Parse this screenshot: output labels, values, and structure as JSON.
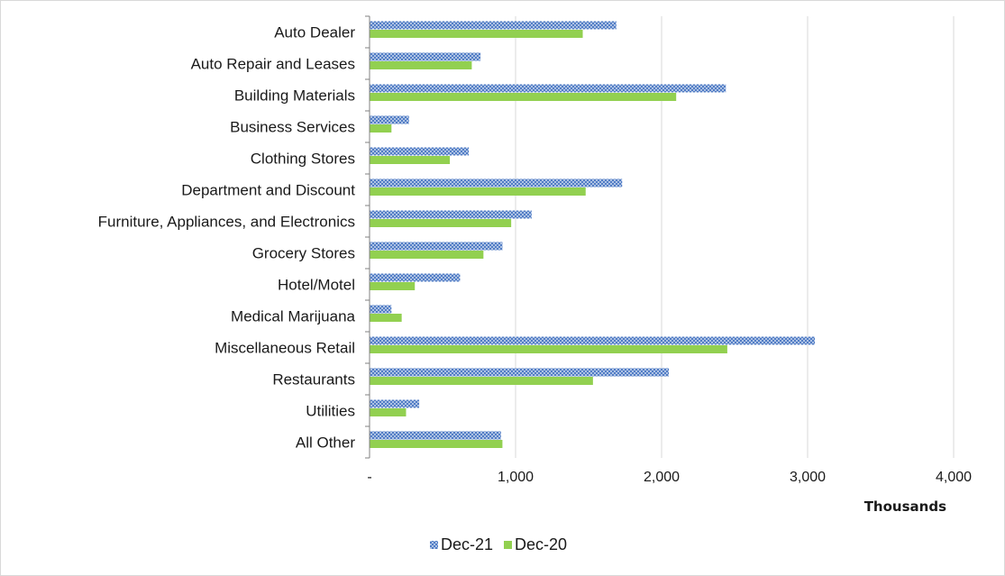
{
  "chart_data": {
    "type": "bar",
    "orientation": "horizontal",
    "categories": [
      "Auto Dealer",
      "Auto Repair and Leases",
      "Building Materials",
      "Business Services",
      "Clothing Stores",
      "Department and Discount",
      "Furniture, Appliances, and Electronics",
      "Grocery Stores",
      "Hotel/Motel",
      "Medical Marijuana",
      "Miscellaneous Retail",
      "Restaurants",
      "Utilities",
      "All Other"
    ],
    "series": [
      {
        "name": "Dec-21",
        "color": "#4472c4",
        "pattern": "crosshatch",
        "values": [
          1690,
          760,
          2440,
          270,
          680,
          1730,
          1110,
          910,
          620,
          150,
          3050,
          2050,
          340,
          900
        ]
      },
      {
        "name": "Dec-20",
        "color": "#92d050",
        "pattern": "solid",
        "values": [
          1460,
          700,
          2100,
          150,
          550,
          1480,
          970,
          780,
          310,
          220,
          2450,
          1530,
          250,
          910
        ]
      }
    ],
    "xlim": [
      0,
      4000
    ],
    "x_ticks": [
      0,
      1000,
      2000,
      3000,
      4000
    ],
    "x_tick_labels": [
      "-",
      "1,000",
      "2,000",
      "3,000",
      "4,000"
    ],
    "xlabel": "Thousands",
    "ylabel": "",
    "title": "",
    "grid": "vertical",
    "legend_position": "bottom"
  }
}
